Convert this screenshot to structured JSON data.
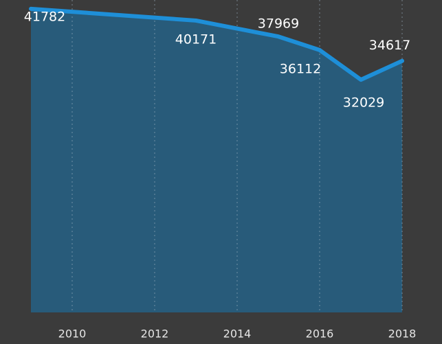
{
  "chart_data": {
    "type": "area",
    "x": [
      2009,
      2013,
      2015,
      2016,
      2017,
      2018
    ],
    "series": [
      {
        "color": "#1e8fd8",
        "values": [
          41782,
          40171,
          37969,
          36112,
          32029,
          34617
        ]
      }
    ],
    "fill_color": "#285b7a",
    "xlim": [
      2009,
      2018
    ],
    "xticks": [
      2010,
      2012,
      2014,
      2016,
      2018
    ],
    "ylim": [
      0,
      43000
    ],
    "grid": true
  }
}
